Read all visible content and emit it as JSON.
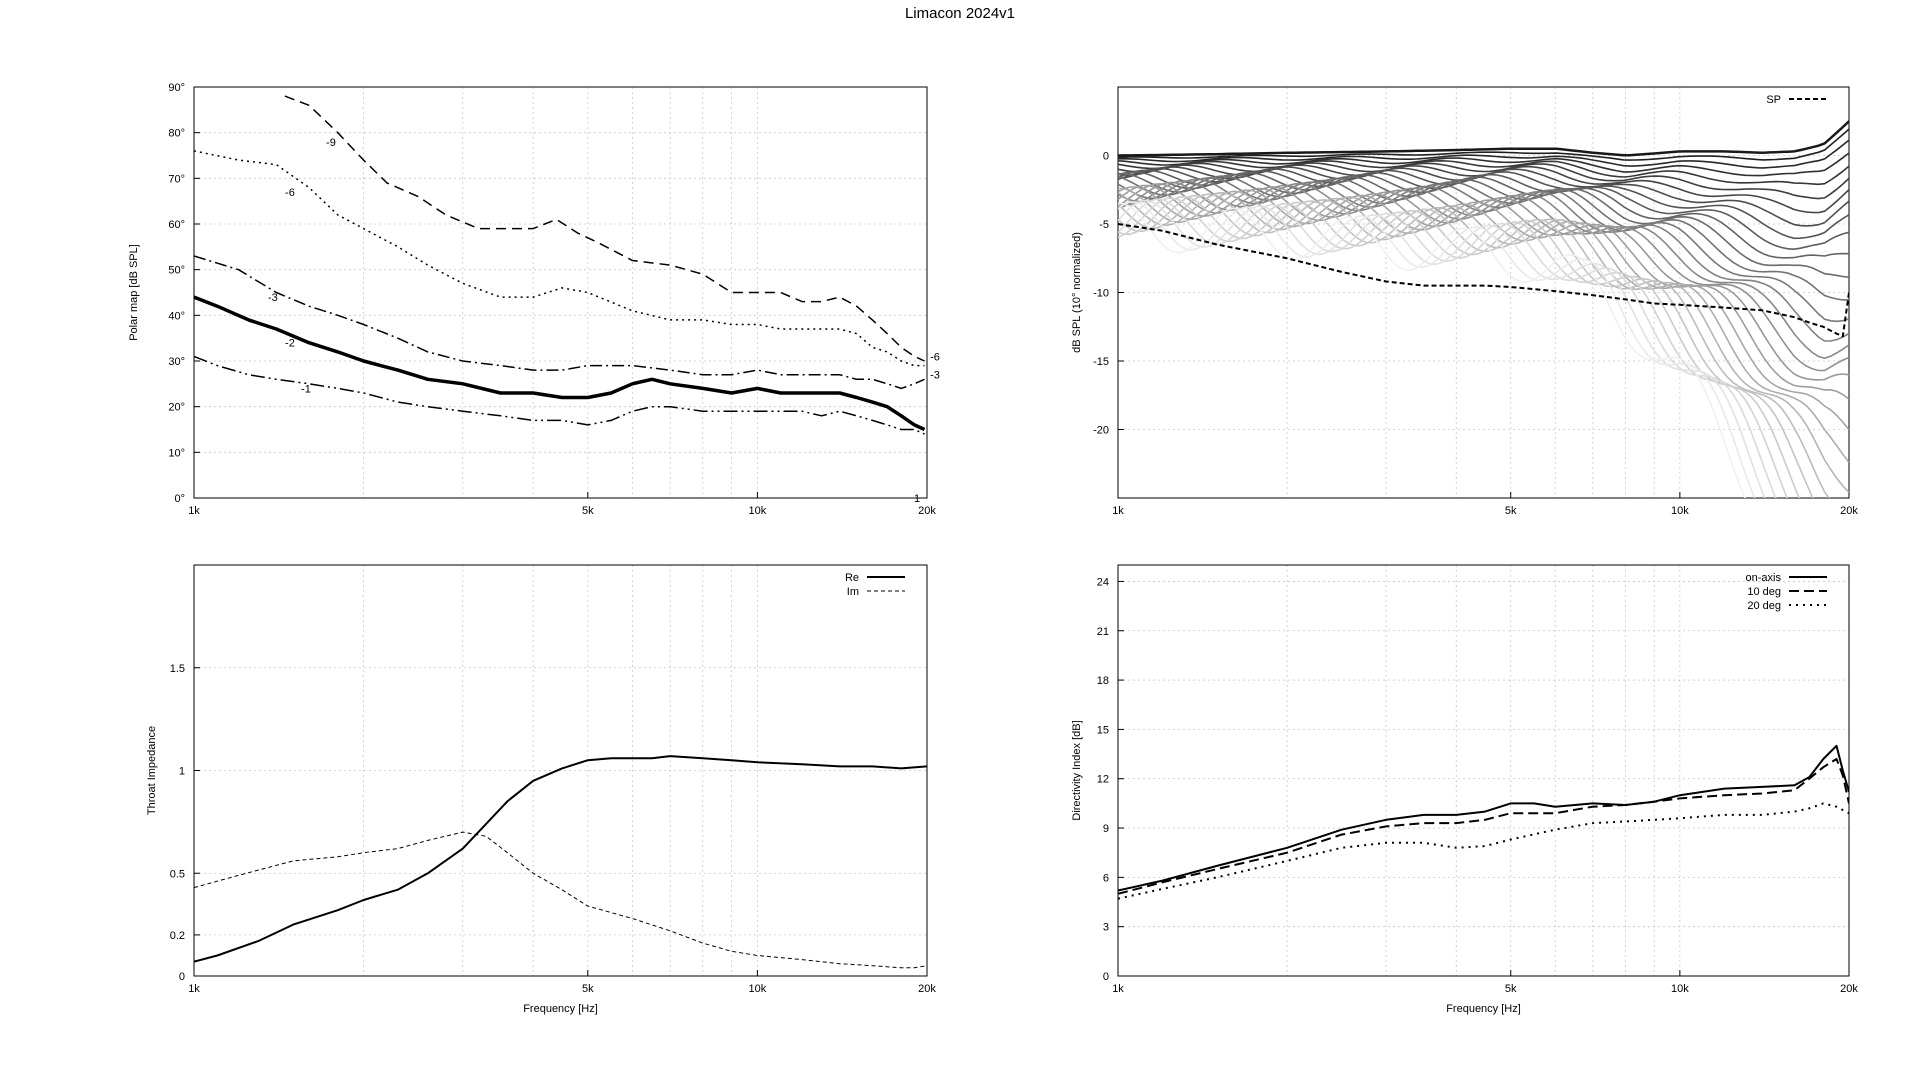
{
  "title": "Limacon 2024v1",
  "chart_data": [
    {
      "id": "polar",
      "type": "line",
      "title": "",
      "xlabel": "",
      "ylabel": "Polar map [dB SPL]",
      "xscale": "log",
      "xlim": [
        1000,
        20000
      ],
      "ylim": [
        0,
        90
      ],
      "grid": true,
      "xticks": [
        {
          "v": 1000,
          "l": "1k"
        },
        {
          "v": 5000,
          "l": "5k"
        },
        {
          "v": 10000,
          "l": "10k"
        },
        {
          "v": 20000,
          "l": "20k"
        }
      ],
      "yticks": [
        {
          "v": 0,
          "l": "0°"
        },
        {
          "v": 10,
          "l": "10°"
        },
        {
          "v": 20,
          "l": "20°"
        },
        {
          "v": 30,
          "l": "30°"
        },
        {
          "v": 40,
          "l": "40°"
        },
        {
          "v": 50,
          "l": "50°"
        },
        {
          "v": 60,
          "l": "60°"
        },
        {
          "v": 70,
          "l": "70°"
        },
        {
          "v": 80,
          "l": "80°"
        },
        {
          "v": 90,
          "l": "90°"
        }
      ],
      "series": [
        {
          "label": "-9",
          "dash": "10 6",
          "width": 1.5,
          "x": [
            1450,
            1600,
            1800,
            2000,
            2200,
            2500,
            2800,
            3200,
            3600,
            4000,
            4400,
            4800,
            5200,
            6000,
            7000,
            8000,
            9000,
            10000,
            11000,
            12000,
            13000,
            14000,
            15000,
            16000,
            17000,
            18000,
            19000,
            19800
          ],
          "y": [
            88,
            86,
            80,
            74,
            69,
            66,
            62,
            59,
            59,
            59,
            61,
            58,
            56,
            52,
            51,
            49,
            45,
            45,
            45,
            43,
            43,
            44,
            42,
            39,
            36,
            33,
            31,
            30
          ]
        },
        {
          "label": "-6",
          "dash": "2 4",
          "width": 1.5,
          "x": [
            1000,
            1200,
            1400,
            1600,
            1800,
            2000,
            2300,
            2600,
            3000,
            3500,
            4000,
            4500,
            5000,
            6000,
            7000,
            8000,
            9000,
            10000,
            11000,
            12000,
            13000,
            14000,
            15000,
            16000,
            17000,
            18000,
            19000,
            19800
          ],
          "y": [
            76,
            74,
            73,
            68,
            62,
            59,
            55,
            51,
            47,
            44,
            44,
            46,
            45,
            41,
            39,
            39,
            38,
            38,
            37,
            37,
            37,
            37,
            36,
            33,
            32,
            30,
            29,
            29
          ]
        },
        {
          "label": "-3",
          "dash": "12 4 2 4",
          "width": 1.5,
          "x": [
            1000,
            1200,
            1400,
            1600,
            1800,
            2000,
            2300,
            2600,
            3000,
            3500,
            4000,
            4500,
            5000,
            6000,
            7000,
            8000,
            9000,
            10000,
            11000,
            12000,
            13000,
            14000,
            15000,
            16000,
            17000,
            18000,
            19000,
            19800
          ],
          "y": [
            53,
            50,
            45,
            42,
            40,
            38,
            35,
            32,
            30,
            29,
            28,
            28,
            29,
            29,
            28,
            27,
            27,
            28,
            27,
            27,
            27,
            27,
            26,
            26,
            25,
            24,
            25,
            26
          ]
        },
        {
          "label": "-2",
          "dash": "",
          "width": 3.5,
          "x": [
            1000,
            1100,
            1250,
            1400,
            1600,
            1800,
            2000,
            2300,
            2600,
            3000,
            3500,
            4000,
            4500,
            5000,
            5500,
            6000,
            6500,
            7000,
            8000,
            9000,
            10000,
            11000,
            12000,
            13000,
            14000,
            15000,
            16000,
            17000,
            18000,
            19000,
            19800
          ],
          "y": [
            44,
            42,
            39,
            37,
            34,
            32,
            30,
            28,
            26,
            25,
            23,
            23,
            22,
            22,
            23,
            25,
            26,
            25,
            24,
            23,
            24,
            23,
            23,
            23,
            23,
            22,
            21,
            20,
            18,
            16,
            15
          ]
        },
        {
          "label": "-1",
          "dash": "14 4 2 4 2 4",
          "width": 1.5,
          "x": [
            1000,
            1100,
            1250,
            1400,
            1600,
            1800,
            2000,
            2300,
            2600,
            3000,
            3500,
            4000,
            4500,
            5000,
            5500,
            6000,
            6500,
            7000,
            8000,
            9000,
            10000,
            11000,
            12000,
            13000,
            14000,
            15000,
            16000,
            17000,
            18000,
            19000,
            19800
          ],
          "y": [
            31,
            29,
            27,
            26,
            25,
            24,
            23,
            21,
            20,
            19,
            18,
            17,
            17,
            16,
            17,
            19,
            20,
            20,
            19,
            19,
            19,
            19,
            19,
            18,
            19,
            18,
            17,
            16,
            15,
            15,
            14
          ]
        }
      ],
      "labels": [
        {
          "text": "-9",
          "x": 1750,
          "y": 78
        },
        {
          "text": "-6",
          "x": 1480,
          "y": 67
        },
        {
          "text": "-3",
          "x": 1380,
          "y": 44
        },
        {
          "text": "-2",
          "x": 1480,
          "y": 34
        },
        {
          "text": "-1",
          "x": 1580,
          "y": 24
        },
        {
          "text": "-6",
          "x": 20000,
          "y": 31
        },
        {
          "text": "-3",
          "x": 20000,
          "y": 27
        },
        {
          "text": "1",
          "x": 19200,
          "y": 0
        }
      ]
    },
    {
      "id": "spl",
      "type": "line",
      "title": "",
      "xlabel": "",
      "ylabel": "dB SPL (10° normalized)",
      "xscale": "log",
      "xlim": [
        1000,
        20000
      ],
      "ylim": [
        -25,
        5
      ],
      "grid": true,
      "xticks": [
        {
          "v": 1000,
          "l": "1k"
        },
        {
          "v": 5000,
          "l": "5k"
        },
        {
          "v": 10000,
          "l": "10k"
        },
        {
          "v": 20000,
          "l": "20k"
        }
      ],
      "yticks": [
        {
          "v": 0,
          "l": "0"
        },
        {
          "v": -5,
          "l": "-5"
        },
        {
          "v": -10,
          "l": "-10"
        },
        {
          "v": -15,
          "l": "-15"
        },
        {
          "v": -20,
          "l": "-20"
        }
      ],
      "fan_count": 30,
      "fan_base_x": [
        1000,
        1500,
        2000,
        3000,
        4000,
        5000,
        6000,
        7000,
        8000,
        10000,
        12000,
        14000,
        16000,
        18000,
        20000
      ],
      "fan_base_y": [
        0,
        0.1,
        0.2,
        0.3,
        0.4,
        0.5,
        0.5,
        0.2,
        0,
        0.3,
        0.3,
        0.2,
        0.3,
        0.8,
        2.5
      ],
      "series": [
        {
          "name": "SP",
          "dash": "5 3",
          "width": 2,
          "x": [
            1000,
            1200,
            1500,
            2000,
            2500,
            3000,
            3500,
            4000,
            4500,
            5000,
            6000,
            7000,
            8000,
            9000,
            10000,
            12000,
            14000,
            16000,
            17000,
            18000,
            19000,
            19500,
            20000
          ],
          "y": [
            -5,
            -5.5,
            -6.5,
            -7.5,
            -8.5,
            -9.2,
            -9.5,
            -9.5,
            -9.5,
            -9.6,
            -9.9,
            -10.2,
            -10.5,
            -10.8,
            -10.9,
            -11.1,
            -11.3,
            -11.8,
            -12.2,
            -12.5,
            -13,
            -13.2,
            -10
          ]
        }
      ],
      "legend": {
        "position": "top-right",
        "entries": [
          "SP"
        ]
      }
    },
    {
      "id": "impedance",
      "type": "line",
      "title": "",
      "xlabel": "Frequency [Hz]",
      "ylabel": "Throat Impedance",
      "xscale": "log",
      "xlim": [
        1000,
        20000
      ],
      "ylim": [
        0,
        2
      ],
      "grid": true,
      "xticks": [
        {
          "v": 1000,
          "l": "1k"
        },
        {
          "v": 5000,
          "l": "5k"
        },
        {
          "v": 10000,
          "l": "10k"
        },
        {
          "v": 20000,
          "l": "20k"
        }
      ],
      "yticks": [
        {
          "v": 0,
          "l": "0"
        },
        {
          "v": 0.2,
          "l": "0.2"
        },
        {
          "v": 0.5,
          "l": "0.5"
        },
        {
          "v": 1,
          "l": "1"
        },
        {
          "v": 1.5,
          "l": "1.5"
        }
      ],
      "series": [
        {
          "name": "Re",
          "dash": "",
          "width": 2,
          "x": [
            1000,
            1100,
            1300,
            1500,
            1800,
            2000,
            2300,
            2600,
            3000,
            3300,
            3600,
            4000,
            4500,
            5000,
            5500,
            6000,
            6500,
            7000,
            8000,
            9000,
            10000,
            12000,
            14000,
            16000,
            18000,
            20000
          ],
          "y": [
            0.07,
            0.1,
            0.17,
            0.25,
            0.32,
            0.37,
            0.42,
            0.5,
            0.62,
            0.74,
            0.85,
            0.95,
            1.01,
            1.05,
            1.06,
            1.06,
            1.06,
            1.07,
            1.06,
            1.05,
            1.04,
            1.03,
            1.02,
            1.02,
            1.01,
            1.02
          ]
        },
        {
          "name": "Im",
          "dash": "4 3",
          "width": 1,
          "x": [
            1000,
            1200,
            1500,
            1800,
            2000,
            2300,
            2600,
            3000,
            3300,
            3600,
            4000,
            4500,
            5000,
            6000,
            7000,
            8000,
            9000,
            10000,
            12000,
            14000,
            16000,
            18000,
            19000,
            20000
          ],
          "y": [
            0.43,
            0.49,
            0.56,
            0.58,
            0.6,
            0.62,
            0.66,
            0.7,
            0.68,
            0.6,
            0.5,
            0.42,
            0.34,
            0.28,
            0.22,
            0.16,
            0.12,
            0.1,
            0.08,
            0.06,
            0.05,
            0.04,
            0.04,
            0.05
          ]
        }
      ],
      "legend": {
        "position": "top-right",
        "entries": [
          "Re",
          "Im"
        ]
      }
    },
    {
      "id": "directivity",
      "type": "line",
      "title": "",
      "xlabel": "Frequency [Hz]",
      "ylabel": "Directivity Index [dB]",
      "xscale": "log",
      "xlim": [
        1000,
        20000
      ],
      "ylim": [
        0,
        25
      ],
      "grid": true,
      "xticks": [
        {
          "v": 1000,
          "l": "1k"
        },
        {
          "v": 5000,
          "l": "5k"
        },
        {
          "v": 10000,
          "l": "10k"
        },
        {
          "v": 20000,
          "l": "20k"
        }
      ],
      "yticks": [
        {
          "v": 0,
          "l": "0"
        },
        {
          "v": 3,
          "l": "3"
        },
        {
          "v": 6,
          "l": "6"
        },
        {
          "v": 9,
          "l": "9"
        },
        {
          "v": 12,
          "l": "12"
        },
        {
          "v": 15,
          "l": "15"
        },
        {
          "v": 18,
          "l": "18"
        },
        {
          "v": 21,
          "l": "21"
        },
        {
          "v": 24,
          "l": "24"
        }
      ],
      "series": [
        {
          "name": "on-axis",
          "dash": "",
          "width": 2,
          "x": [
            1000,
            1200,
            1500,
            2000,
            2500,
            3000,
            3500,
            4000,
            4500,
            5000,
            5500,
            6000,
            7000,
            8000,
            9000,
            10000,
            12000,
            14000,
            16000,
            17000,
            18000,
            19000,
            19500,
            20000
          ],
          "y": [
            5.2,
            5.8,
            6.7,
            7.8,
            8.9,
            9.5,
            9.8,
            9.8,
            10.0,
            10.5,
            10.5,
            10.3,
            10.5,
            10.4,
            10.6,
            11.0,
            11.4,
            11.5,
            11.6,
            12.1,
            13.2,
            14.0,
            12.5,
            11.2
          ]
        },
        {
          "name": "10 deg",
          "dash": "10 5",
          "width": 2,
          "x": [
            1000,
            1200,
            1500,
            2000,
            2500,
            3000,
            3500,
            4000,
            4500,
            5000,
            6000,
            7000,
            8000,
            9000,
            10000,
            12000,
            14000,
            16000,
            17000,
            18000,
            19000,
            19500,
            20000
          ],
          "y": [
            5.0,
            5.7,
            6.5,
            7.5,
            8.6,
            9.1,
            9.3,
            9.3,
            9.5,
            9.9,
            9.9,
            10.3,
            10.4,
            10.6,
            10.8,
            11.0,
            11.1,
            11.3,
            12.0,
            12.7,
            13.2,
            12.2,
            10.5
          ]
        },
        {
          "name": "20 deg",
          "dash": "2 5",
          "width": 2,
          "x": [
            1000,
            1200,
            1500,
            2000,
            2500,
            3000,
            3500,
            4000,
            4500,
            5000,
            6000,
            7000,
            8000,
            9000,
            10000,
            12000,
            14000,
            16000,
            17000,
            18000,
            19000,
            19500,
            20000
          ],
          "y": [
            4.7,
            5.3,
            6.0,
            7.0,
            7.8,
            8.1,
            8.1,
            7.8,
            7.9,
            8.3,
            8.9,
            9.3,
            9.4,
            9.5,
            9.6,
            9.8,
            9.8,
            10.0,
            10.2,
            10.5,
            10.3,
            10.1,
            9.9
          ]
        }
      ],
      "legend": {
        "position": "top-right",
        "entries": [
          "on-axis",
          "10 deg",
          "20 deg"
        ]
      }
    }
  ]
}
